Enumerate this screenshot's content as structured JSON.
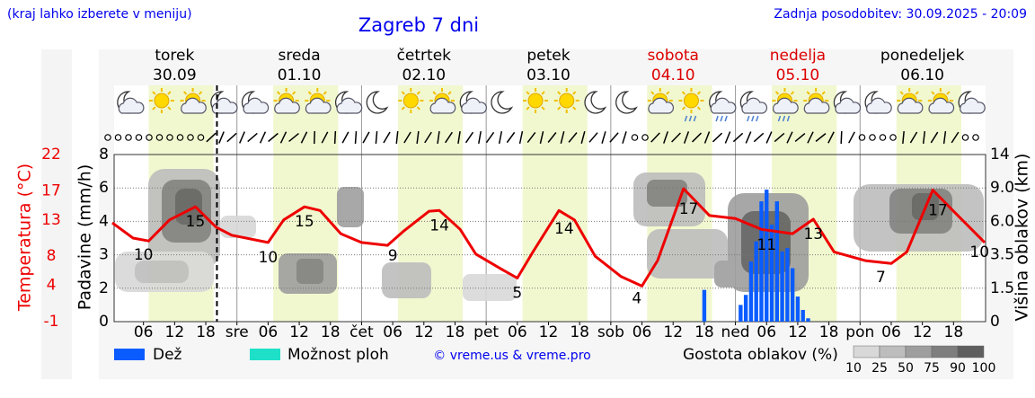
{
  "header": {
    "hint": "(kraj lahko izberete v meniju)",
    "title": "Zagreb 7 dni",
    "updated": "Zadnja posodobitev: 30.09.2025 - 20:09"
  },
  "days": [
    {
      "name": "torek",
      "date": "30.09",
      "color": "#000000"
    },
    {
      "name": "sreda",
      "date": "01.10",
      "color": "#000000"
    },
    {
      "name": "četrtek",
      "date": "02.10",
      "color": "#000000"
    },
    {
      "name": "petek",
      "date": "03.10",
      "color": "#000000"
    },
    {
      "name": "sobota",
      "date": "04.10",
      "color": "#dd0000"
    },
    {
      "name": "nedelja",
      "date": "05.10",
      "color": "#dd0000"
    },
    {
      "name": "ponedeljek",
      "date": "06.10",
      "color": "#000000"
    }
  ],
  "chart_data": {
    "type": "meteogram",
    "xlim": [
      0,
      168
    ],
    "xticks": [
      {
        "value": 6,
        "label": "06"
      },
      {
        "value": 12,
        "label": "12"
      },
      {
        "value": 18,
        "label": "18"
      },
      {
        "value": 24,
        "label": "sre"
      },
      {
        "value": 30,
        "label": "06"
      },
      {
        "value": 36,
        "label": "12"
      },
      {
        "value": 42,
        "label": "18"
      },
      {
        "value": 48,
        "label": "čet"
      },
      {
        "value": 54,
        "label": "06"
      },
      {
        "value": 60,
        "label": "12"
      },
      {
        "value": 66,
        "label": "18"
      },
      {
        "value": 72,
        "label": "pet"
      },
      {
        "value": 78,
        "label": "06"
      },
      {
        "value": 84,
        "label": "12"
      },
      {
        "value": 90,
        "label": "18"
      },
      {
        "value": 96,
        "label": "sob"
      },
      {
        "value": 102,
        "label": "06"
      },
      {
        "value": 108,
        "label": "12"
      },
      {
        "value": 114,
        "label": "18"
      },
      {
        "value": 120,
        "label": "ned"
      },
      {
        "value": 126,
        "label": "06"
      },
      {
        "value": 132,
        "label": "12"
      },
      {
        "value": 138,
        "label": "18"
      },
      {
        "value": 144,
        "label": "pon"
      },
      {
        "value": 150,
        "label": "06"
      },
      {
        "value": 156,
        "label": "12"
      },
      {
        "value": 162,
        "label": "18"
      }
    ],
    "now": 20.15,
    "y_label": "Padavine (mm/h)",
    "ylim": [
      0,
      8
    ],
    "yticks": [
      0,
      2,
      3,
      4,
      6,
      8
    ],
    "temp_label": "Temperatura (°C)",
    "temp_color": "#ee0000",
    "temp_ylim": [
      -1,
      22
    ],
    "temp_ticks": [
      -1,
      4,
      8,
      13,
      17,
      22
    ],
    "y2_label": "Višina oblakov (km)",
    "y2lim": [
      0,
      14
    ],
    "y2ticks": [
      0,
      1.5,
      3.5,
      {
        "value": 6,
        "label": "6.0"
      },
      {
        "value": 9,
        "label": "9.0"
      },
      14
    ],
    "grid": true,
    "temperature": {
      "color": "#ee0000",
      "x": [
        0,
        4,
        7,
        11,
        16,
        20,
        23,
        30,
        33,
        37,
        40,
        44,
        48,
        53,
        56,
        61,
        63,
        67,
        70,
        75,
        78,
        81,
        86,
        89,
        93,
        98,
        102,
        105,
        110,
        115,
        120,
        125,
        131,
        135,
        139,
        145,
        150,
        153,
        158,
        162,
        168
      ],
      "values": [
        12.6,
        10.5,
        10.1,
        13.0,
        14.8,
        12.0,
        10.9,
        9.9,
        13.0,
        14.8,
        14.3,
        11.1,
        9.9,
        9.5,
        11.4,
        14.2,
        14.3,
        11.7,
        8.3,
        6.2,
        5.0,
        8.6,
        14.3,
        13.0,
        8.0,
        5.2,
        3.9,
        7.4,
        17.3,
        13.6,
        13.2,
        11.7,
        11.1,
        13.1,
        8.6,
        7.4,
        7.0,
        8.6,
        17.1,
        14.2,
        9.9
      ]
    },
    "temp_labels": {
      "x": [
        6,
        16,
        30,
        37,
        54,
        63,
        78,
        87,
        101,
        111,
        126,
        135,
        148,
        159,
        167
      ],
      "values": [
        10,
        15,
        10,
        15,
        9,
        14,
        5,
        14,
        4,
        17,
        11,
        13,
        7,
        17,
        10
      ]
    },
    "series": [
      {
        "name": "Dež",
        "color": "#0a5cff",
        "x": [
          114,
          121,
          122,
          123,
          124,
          125,
          126,
          127,
          128,
          129,
          130,
          131,
          132,
          133,
          134
        ],
        "values": [
          1.9,
          1.0,
          1.6,
          2.8,
          3.4,
          5.2,
          5.9,
          3.9,
          5.2,
          3.1,
          3.2,
          2.6,
          1.5,
          0.7,
          0.2
        ]
      },
      {
        "name": "Možnost ploh",
        "color": "#1ee0c8",
        "x": [],
        "values": []
      }
    ],
    "credit": "© vreme.us & vreme.pro",
    "cloud_legend": {
      "title": "Gostota oblakov (%)",
      "levels": [
        10,
        25,
        50,
        75,
        90,
        100
      ],
      "colors": [
        "#d8d8d8",
        "#bdbdbd",
        "#9e9e9e",
        "#7e7e7e",
        "#5e5e5e"
      ]
    }
  }
}
